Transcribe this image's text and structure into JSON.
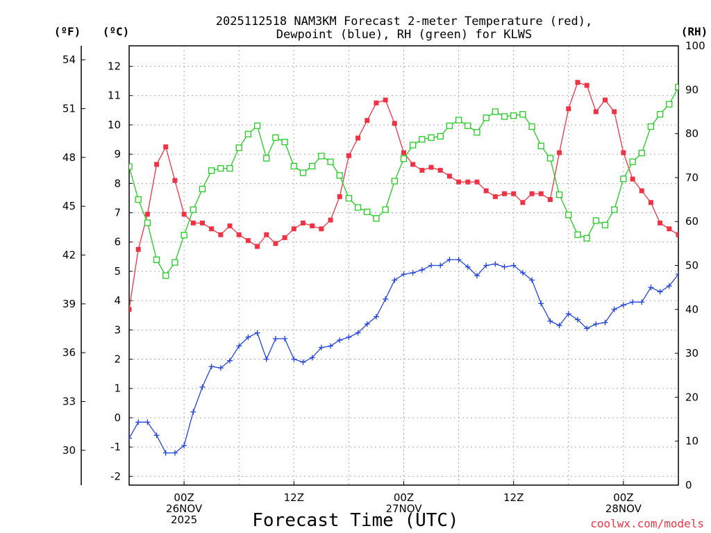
{
  "title_line1": "2025112518 NAM3KM Forecast 2-meter Temperature (red),",
  "title_line2": "Dewpoint (blue), RH (green) for KLWS",
  "units": {
    "f": "(ºF)",
    "c": "(ºC)",
    "rh": "(RH)"
  },
  "xlabel": "Forecast Time (UTC)",
  "credit": "coolwx.com/models",
  "colors": {
    "temp": "#ee3344",
    "dew": "#2244dd",
    "rh": "#22cc22",
    "grid": "#aaaaaa"
  },
  "chart_data": {
    "type": "line",
    "title": "2025112518 NAM3KM Forecast 2-meter Temperature (red), Dewpoint (blue), RH (green) for KLWS",
    "xlabel": "Forecast Time (UTC)",
    "x_unit": "forecast hour (0 = 2025-11-25 18Z)",
    "xlim": [
      0,
      60
    ],
    "ylim_c": [
      -2.3,
      12.7
    ],
    "ylim_f": [
      27.86,
      54.86
    ],
    "ylim_rh": [
      0,
      100
    ],
    "y_ticks_c": [
      -2,
      -1,
      0,
      1,
      2,
      3,
      4,
      5,
      6,
      7,
      8,
      9,
      10,
      11,
      12
    ],
    "y_ticks_f": [
      30,
      33,
      36,
      39,
      42,
      45,
      48,
      51,
      54
    ],
    "y_ticks_rh": [
      0,
      10,
      20,
      30,
      40,
      50,
      60,
      70,
      80,
      90,
      100
    ],
    "x_ticks": [
      {
        "hour": 6,
        "lines": [
          "00Z",
          "26NOV",
          "2025"
        ]
      },
      {
        "hour": 18,
        "lines": [
          "12Z"
        ]
      },
      {
        "hour": 30,
        "lines": [
          "00Z",
          "27NOV"
        ]
      },
      {
        "hour": 42,
        "lines": [
          "12Z"
        ]
      },
      {
        "hour": 54,
        "lines": [
          "00Z",
          "28NOV"
        ]
      }
    ],
    "x": [
      0,
      1,
      2,
      3,
      4,
      5,
      6,
      7,
      8,
      9,
      10,
      11,
      12,
      13,
      14,
      15,
      16,
      17,
      18,
      19,
      20,
      21,
      22,
      23,
      24,
      25,
      26,
      27,
      28,
      29,
      30,
      31,
      32,
      33,
      34,
      35,
      36,
      37,
      38,
      39,
      40,
      41,
      42,
      43,
      44,
      45,
      46,
      47,
      48,
      49,
      50,
      51,
      52,
      53,
      54,
      55,
      56,
      57,
      58,
      59,
      60
    ],
    "series": [
      {
        "name": "Temperature (°C)",
        "axis": "C",
        "marker": "filled-square",
        "values": [
          3.7,
          5.75,
          6.95,
          8.65,
          9.25,
          8.1,
          6.95,
          6.65,
          6.65,
          6.45,
          6.25,
          6.55,
          6.25,
          6.05,
          5.85,
          6.25,
          5.95,
          6.15,
          6.45,
          6.65,
          6.55,
          6.45,
          6.75,
          7.55,
          8.95,
          9.55,
          10.15,
          10.75,
          10.85,
          10.05,
          9.05,
          8.65,
          8.45,
          8.55,
          8.45,
          8.25,
          8.05,
          8.05,
          8.05,
          7.75,
          7.55,
          7.65,
          7.65,
          7.35,
          7.65,
          7.65,
          7.45,
          9.05,
          10.55,
          11.45,
          11.35,
          10.45,
          10.85,
          10.45,
          9.05,
          8.15,
          7.75,
          7.35,
          6.65,
          6.45,
          6.25
        ]
      },
      {
        "name": "Dewpoint (°C)",
        "axis": "C",
        "marker": "plus",
        "values": [
          -0.7,
          -0.15,
          -0.15,
          -0.6,
          -1.2,
          -1.2,
          -0.95,
          0.2,
          1.05,
          1.75,
          1.7,
          1.95,
          2.45,
          2.75,
          2.9,
          2.0,
          2.7,
          2.7,
          2.0,
          1.9,
          2.05,
          2.4,
          2.45,
          2.65,
          2.75,
          2.9,
          3.2,
          3.45,
          4.05,
          4.7,
          4.9,
          4.95,
          5.05,
          5.2,
          5.2,
          5.4,
          5.4,
          5.15,
          4.85,
          5.2,
          5.25,
          5.15,
          5.2,
          4.95,
          4.7,
          3.9,
          3.3,
          3.15,
          3.55,
          3.35,
          3.05,
          3.2,
          3.25,
          3.7,
          3.85,
          3.95,
          3.95,
          4.45,
          4.3,
          4.5,
          4.9
        ]
      },
      {
        "name": "Relative Humidity (%)",
        "axis": "RH",
        "marker": "open-square",
        "values": [
          72.5,
          65,
          59.7,
          51.3,
          47.7,
          50.7,
          56.9,
          62.7,
          67.4,
          71.6,
          72.1,
          72.1,
          76.8,
          79.9,
          81.8,
          74.4,
          79.1,
          78.1,
          72.6,
          71.1,
          72.6,
          74.9,
          73.6,
          70.5,
          65.3,
          63.2,
          62.2,
          60.7,
          62.7,
          69.2,
          74.3,
          77.4,
          78.7,
          79.1,
          79.4,
          81.8,
          83.1,
          81.8,
          80.3,
          83.6,
          85.0,
          83.9,
          84.1,
          84.4,
          81.6,
          77.2,
          74.4,
          66.1,
          61.5,
          57.0,
          56.2,
          60.2,
          59.2,
          62.7,
          69.7,
          73.6,
          75.6,
          81.6,
          84.4,
          86.7,
          90.6
        ]
      }
    ]
  }
}
